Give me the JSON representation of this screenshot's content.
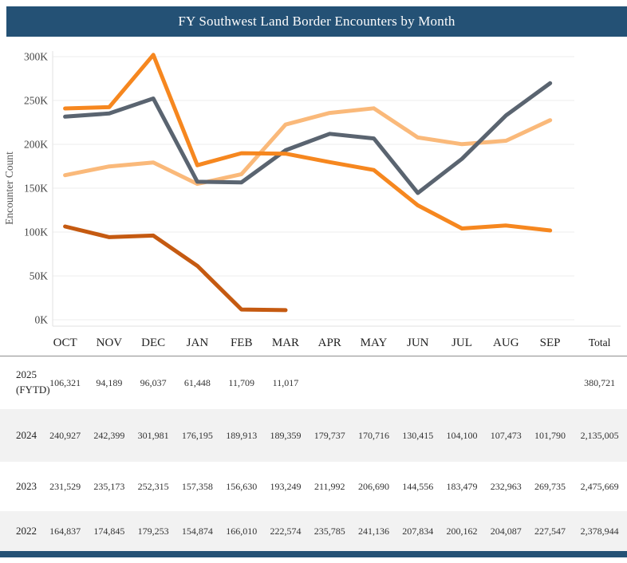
{
  "header": {
    "title": "FY Southwest Land Border Encounters by Month",
    "bar_color": "#245175"
  },
  "chart_data": {
    "type": "line",
    "title": "FY Southwest Land Border Encounters by Month",
    "xlabel": "",
    "ylabel": "Encounter Count",
    "categories": [
      "OCT",
      "NOV",
      "DEC",
      "JAN",
      "FEB",
      "MAR",
      "APR",
      "MAY",
      "JUN",
      "JUL",
      "AUG",
      "SEP"
    ],
    "y_ticks": [
      "0K",
      "50K",
      "100K",
      "150K",
      "200K",
      "250K",
      "300K"
    ],
    "ylim": [
      0,
      300000
    ],
    "grid": "horizontal",
    "legend_position": "none",
    "series": [
      {
        "name": "2022",
        "color": "#fab97a",
        "values": [
          164837,
          174845,
          179253,
          154874,
          166010,
          222574,
          235785,
          241136,
          207834,
          200162,
          204087,
          227547
        ],
        "total": 2378944
      },
      {
        "name": "2023",
        "color": "#5a6470",
        "values": [
          231529,
          235173,
          252315,
          157358,
          156630,
          193249,
          211992,
          206690,
          144556,
          183479,
          232963,
          269735
        ],
        "total": 2475669
      },
      {
        "name": "2024",
        "color": "#f6871f",
        "values": [
          240927,
          242399,
          301981,
          176195,
          189913,
          189359,
          179737,
          170716,
          130415,
          104100,
          107473,
          101790
        ],
        "total": 2135005
      },
      {
        "name": "2025 (FYTD)",
        "color": "#c55a11",
        "values": [
          106321,
          94189,
          96037,
          61448,
          11709,
          11017,
          null,
          null,
          null,
          null,
          null,
          null
        ],
        "total": 380721
      }
    ]
  },
  "table": {
    "columns": [
      "OCT",
      "NOV",
      "DEC",
      "JAN",
      "FEB",
      "MAR",
      "APR",
      "MAY",
      "JUN",
      "JUL",
      "AUG",
      "SEP",
      "Total"
    ],
    "rows": [
      {
        "label": "2025 (FYTD)",
        "values": [
          "106,321",
          "94,189",
          "96,037",
          "61,448",
          "11,709",
          "11,017",
          "",
          "",
          "",
          "",
          "",
          ""
        ],
        "total": "380,721"
      },
      {
        "label": "2024",
        "values": [
          "240,927",
          "242,399",
          "301,981",
          "176,195",
          "189,913",
          "189,359",
          "179,737",
          "170,716",
          "130,415",
          "104,100",
          "107,473",
          "101,790"
        ],
        "total": "2,135,005"
      },
      {
        "label": "2023",
        "values": [
          "231,529",
          "235,173",
          "252,315",
          "157,358",
          "156,630",
          "193,249",
          "211,992",
          "206,690",
          "144,556",
          "183,479",
          "232,963",
          "269,735"
        ],
        "total": "2,475,669"
      },
      {
        "label": "2022",
        "values": [
          "164,837",
          "174,845",
          "179,253",
          "154,874",
          "166,010",
          "222,574",
          "235,785",
          "241,136",
          "207,834",
          "200,162",
          "204,087",
          "227,547"
        ],
        "total": "2,378,944"
      }
    ]
  }
}
